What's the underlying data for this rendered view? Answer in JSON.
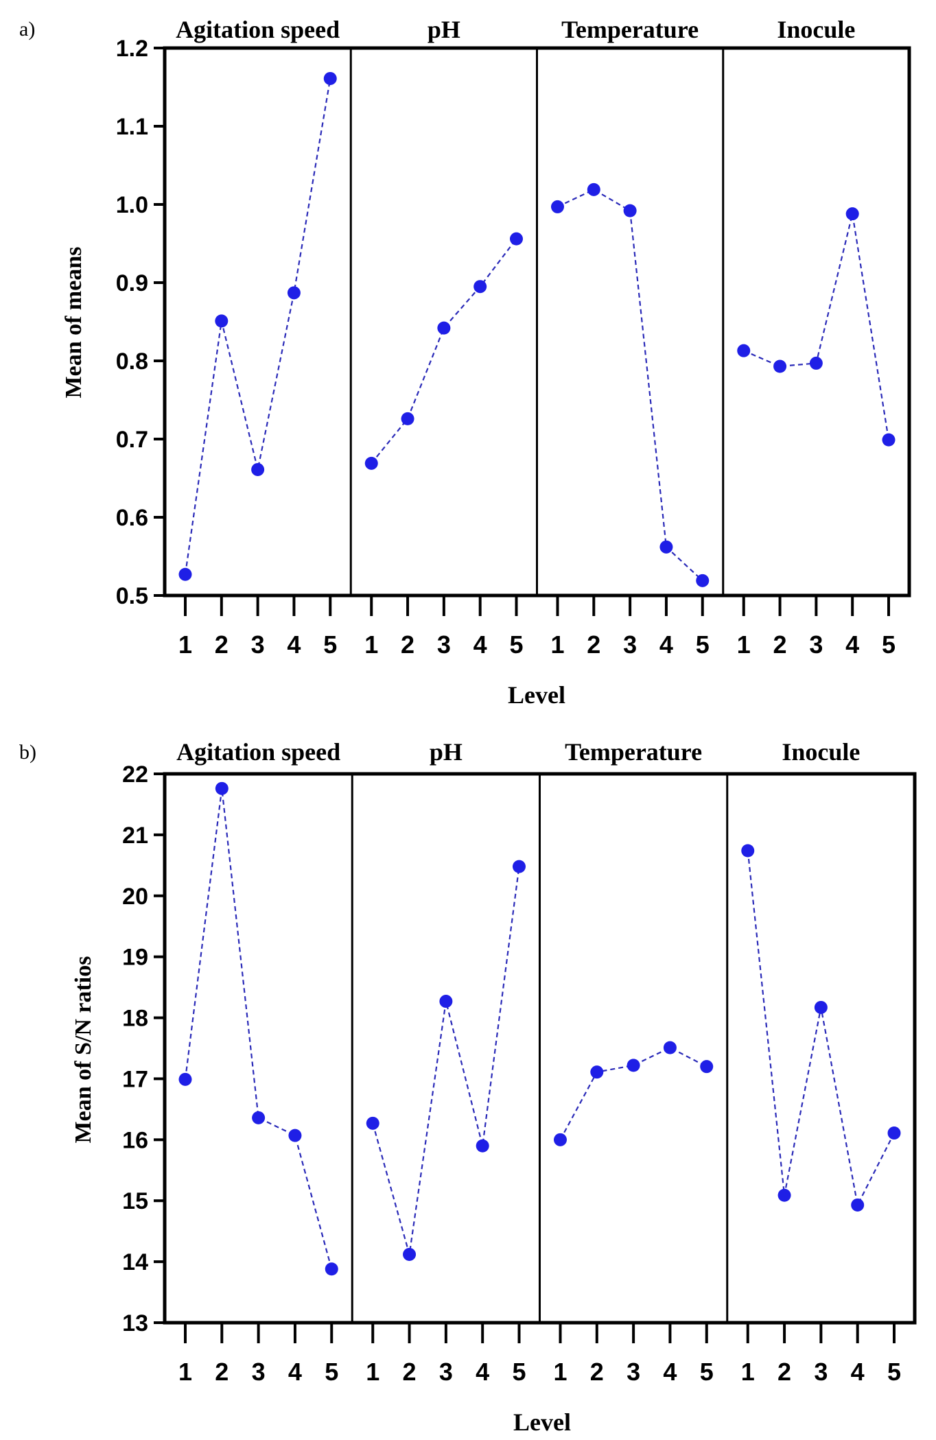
{
  "chart_data": [
    {
      "type": "line",
      "panel_label": "a)",
      "ylabel": "Mean of means",
      "xlabel": "Level",
      "ylim": [
        0.5,
        1.2
      ],
      "yticks": [
        "0.5",
        "0.6",
        "0.7",
        "0.8",
        "0.9",
        "1.0",
        "1.1",
        "1.2"
      ],
      "ytick_values": [
        0.5,
        0.6,
        0.7,
        0.8,
        0.9,
        1.0,
        1.1,
        1.2
      ],
      "categories": [
        "1",
        "2",
        "3",
        "4",
        "5"
      ],
      "series": [
        {
          "name": "Agitation speed",
          "values": [
            0.527,
            0.851,
            0.661,
            0.887,
            1.161
          ]
        },
        {
          "name": "pH",
          "values": [
            0.669,
            0.726,
            0.842,
            0.895,
            0.956
          ]
        },
        {
          "name": "Temperature",
          "values": [
            0.997,
            1.019,
            0.992,
            0.562,
            0.519
          ]
        },
        {
          "name": "Inocule",
          "values": [
            0.813,
            0.793,
            0.797,
            0.988,
            0.699
          ]
        }
      ]
    },
    {
      "type": "line",
      "panel_label": "b)",
      "ylabel": "Mean of S/N ratios",
      "xlabel": "Level",
      "ylim": [
        13,
        22
      ],
      "yticks": [
        "13",
        "14",
        "15",
        "16",
        "17",
        "18",
        "19",
        "20",
        "21",
        "22"
      ],
      "ytick_values": [
        13,
        14,
        15,
        16,
        17,
        18,
        19,
        20,
        21,
        22
      ],
      "categories": [
        "1",
        "2",
        "3",
        "4",
        "5"
      ],
      "series": [
        {
          "name": "Agitation speed",
          "values": [
            16.99,
            21.76,
            16.36,
            16.07,
            13.88
          ]
        },
        {
          "name": "pH",
          "values": [
            16.27,
            14.12,
            18.27,
            15.9,
            20.48
          ]
        },
        {
          "name": "Temperature",
          "values": [
            16.0,
            17.11,
            17.22,
            17.51,
            17.2
          ]
        },
        {
          "name": "Inocule",
          "values": [
            20.74,
            15.09,
            18.17,
            14.93,
            16.11
          ]
        }
      ]
    }
  ],
  "colors": {
    "marker": "#1f1fe6",
    "line": "#2a2ab8",
    "axis": "#000000"
  }
}
